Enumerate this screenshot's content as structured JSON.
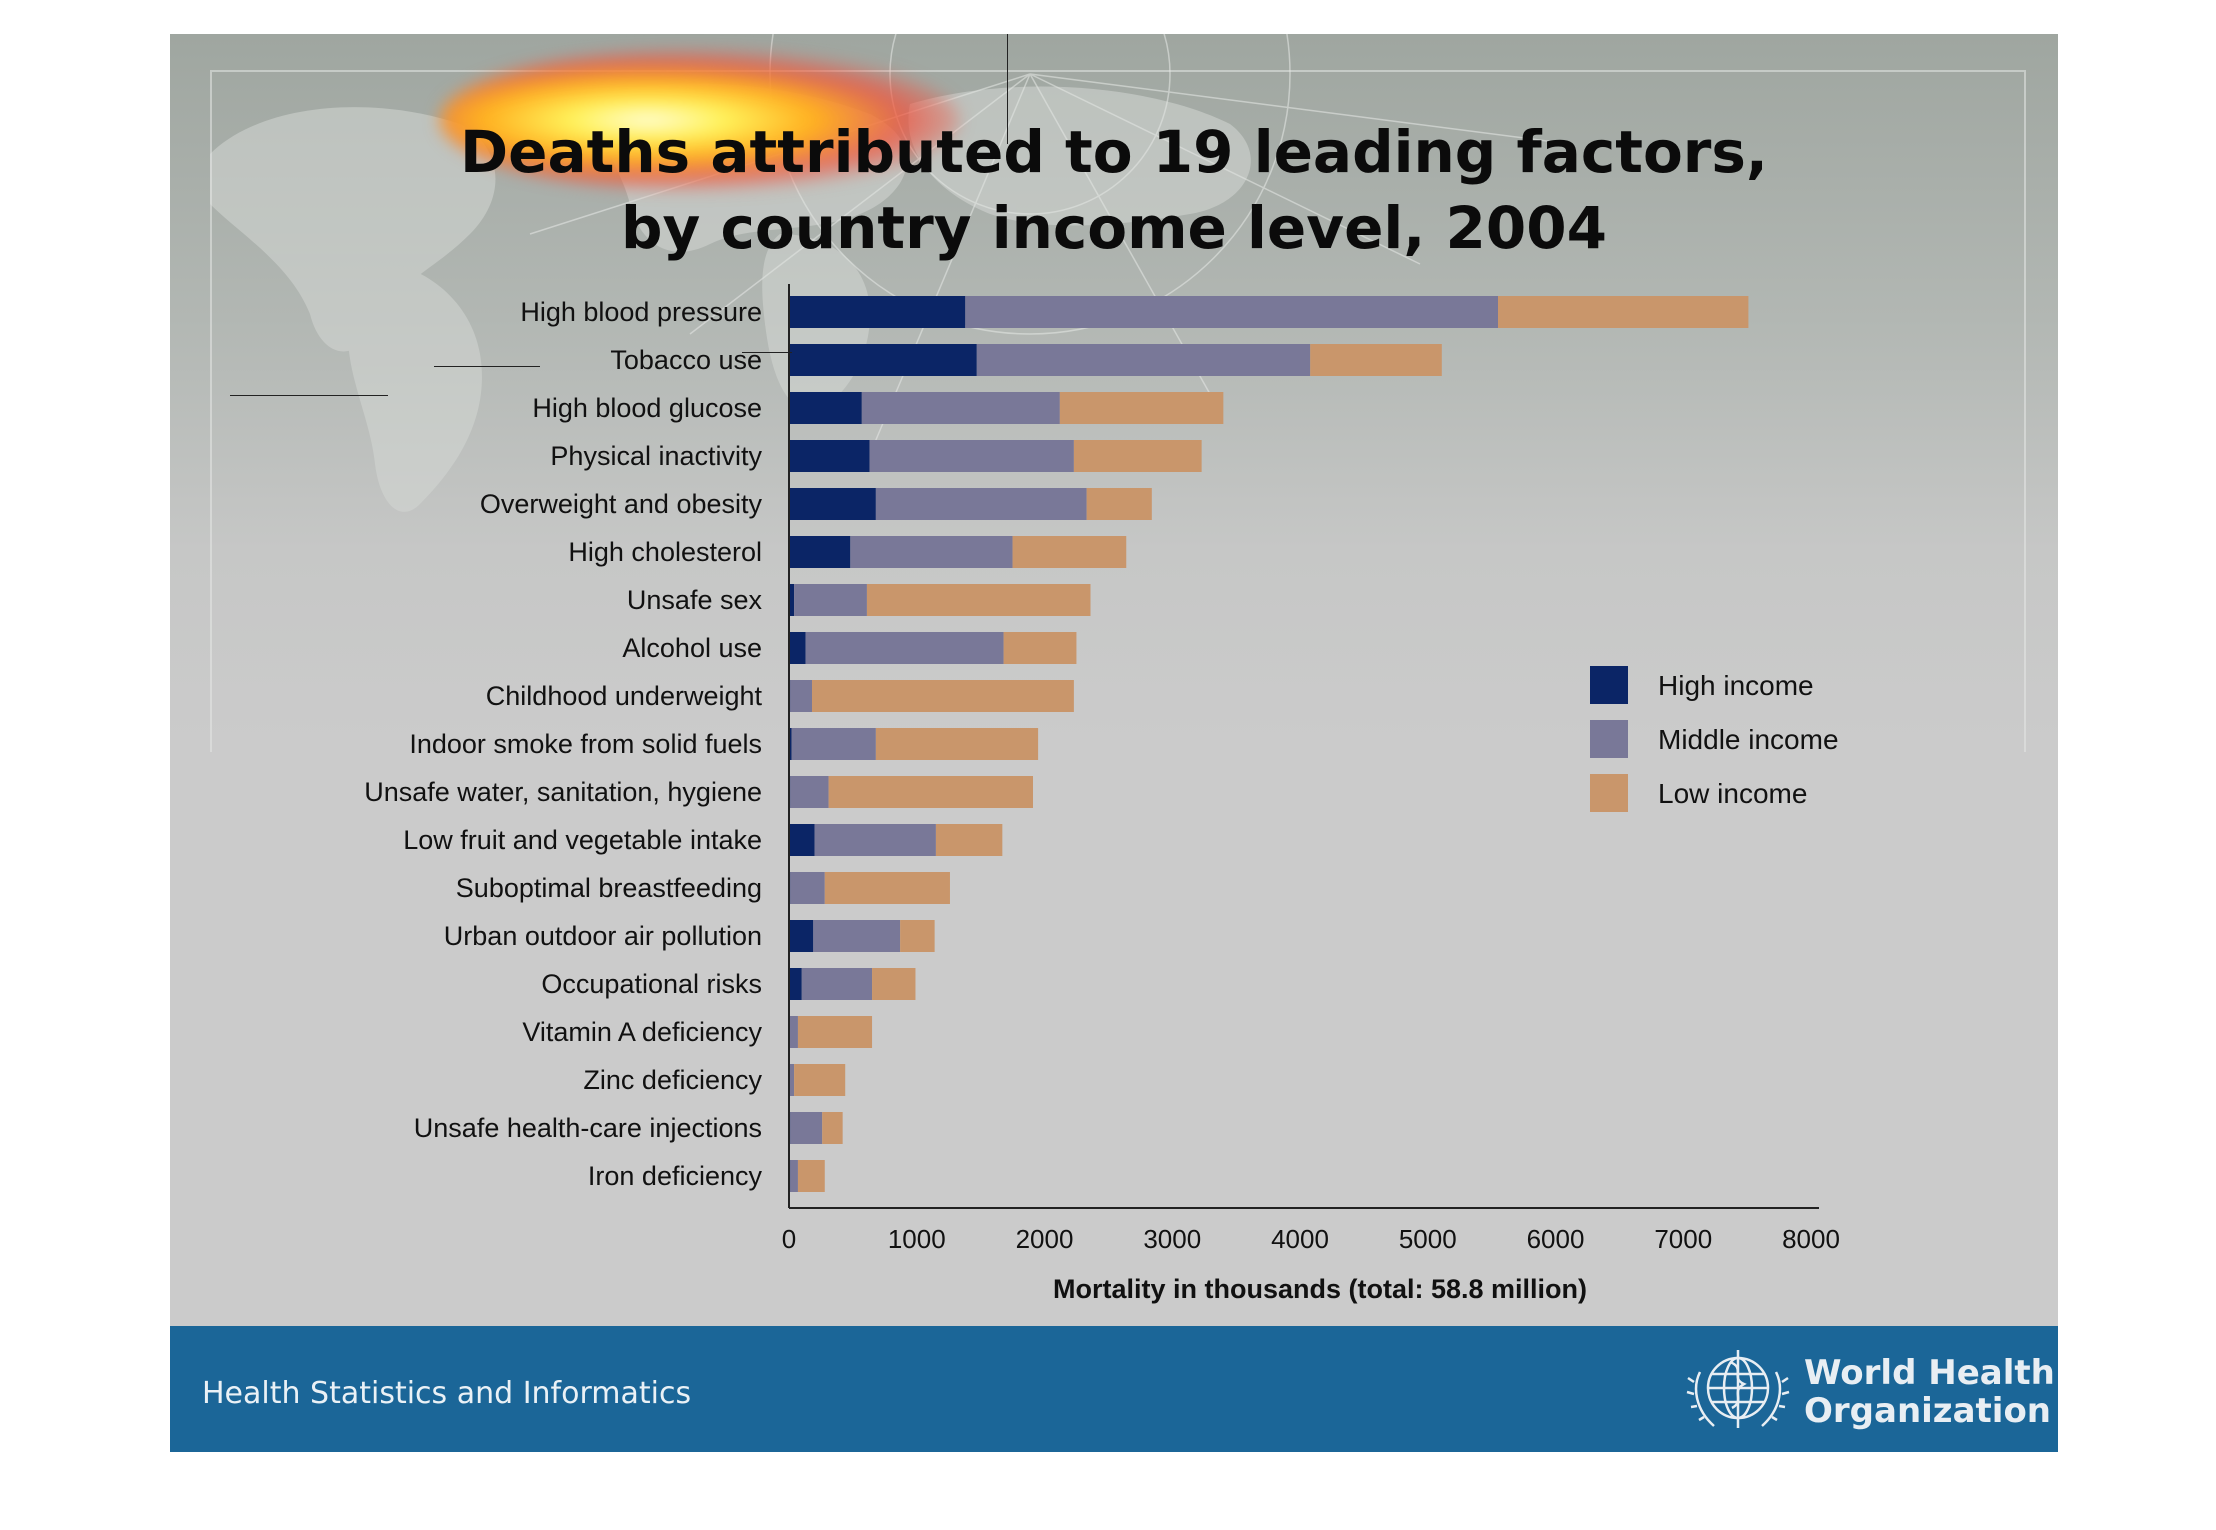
{
  "title_line1": "Deaths attributed to 19 leading factors,",
  "title_line2": "by country income level, 2004",
  "footer": {
    "left_text": "Health Statistics and Informatics",
    "org_line1": "World Health",
    "org_line2": "Organization"
  },
  "colors": {
    "high_income": "#0b2566",
    "middle_income": "#797898",
    "low_income": "#c9966b",
    "footer_bg": "#1b6698"
  },
  "chart_data": {
    "type": "bar",
    "orientation": "horizontal",
    "stacked": true,
    "xlabel": "Mortality in thousands (total: 58.8 million)",
    "ylabel": "",
    "xlim": [
      0,
      8000
    ],
    "xticks": [
      0,
      1000,
      2000,
      3000,
      4000,
      5000,
      6000,
      7000,
      8000
    ],
    "legend_position": "right",
    "categories": [
      "High blood pressure",
      "Tobacco use",
      "High blood glucose",
      "Physical inactivity",
      "Overweight and obesity",
      "High cholesterol",
      "Unsafe sex",
      "Alcohol use",
      "Childhood underweight",
      "Indoor smoke from solid fuels",
      "Unsafe water, sanitation, hygiene",
      "Low fruit and vegetable intake",
      "Suboptimal breastfeeding",
      "Urban outdoor air pollution",
      "Occupational risks",
      "Vitamin A deficiency",
      "Zinc deficiency",
      "Unsafe health-care injections",
      "Iron deficiency"
    ],
    "series": [
      {
        "name": "High income",
        "values": [
          1380,
          1470,
          570,
          630,
          680,
          480,
          40,
          130,
          10,
          20,
          10,
          200,
          10,
          190,
          100,
          0,
          0,
          10,
          10
        ]
      },
      {
        "name": "Middle income",
        "values": [
          4170,
          2610,
          1550,
          1600,
          1650,
          1270,
          570,
          1550,
          170,
          660,
          300,
          950,
          270,
          680,
          550,
          70,
          40,
          250,
          60
        ]
      },
      {
        "name": "Low income",
        "values": [
          1960,
          1030,
          1280,
          1000,
          510,
          890,
          1750,
          570,
          2050,
          1270,
          1600,
          520,
          980,
          270,
          340,
          580,
          400,
          160,
          210
        ]
      }
    ]
  }
}
